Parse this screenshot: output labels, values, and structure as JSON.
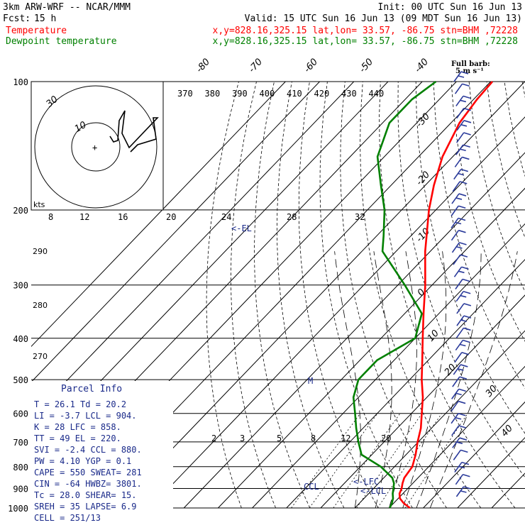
{
  "header": {
    "model": "3km ARW-WRF -- NCAR/MMM",
    "init": "Init: 00 UTC Sun 16 Jun 13",
    "fcst_label": "Fcst:",
    "fcst_value": "15 h",
    "valid": "Valid: 15 UTC Sun 16 Jun 13 (09 MDT Sun 16 Jun 13)",
    "temp_label": "Temperature",
    "dew_label": "Dewpoint temperature",
    "temp_loc": "x,y=828.16,325.15   lat,lon= 33.57, -86.75   stn=BHM ,72228",
    "dew_loc": "x,y=828.16,325.15   lat,lon= 33.57, -86.75   stn=BHM ,72228",
    "full_barb_1": "Full barb:",
    "full_barb_2": "5 m s⁻¹"
  },
  "colors": {
    "temperature": "#ff0000",
    "dewpoint": "#008000",
    "wind_barbs": "#2a3a9a",
    "parcel_info": "#1a2a8a"
  },
  "annotations": {
    "el": "<-EL",
    "lfc": "<-LFC",
    "lcl": "<-LCL",
    "ccl": "CCL",
    "freezing_marker": "M",
    "hodo_kts": "kts",
    "hodo_ring_outer": "30",
    "hodo_ring_inner": "10"
  },
  "parcel_info": {
    "title": "Parcel Info",
    "rows": [
      "T  =    26.1  Td =  20.2",
      "LI =    -3.7  LCL =  904.",
      "K  =      28  LFC =  858.",
      "TT =      49  EL  =  220.",
      "SVI =   -2.4  CCL =  880.",
      "PW =    4.10  YGP =   0.1",
      "CAPE =   550  SWEAT=  281",
      "CIN =    -64  HWBZ= 3801.",
      "Tc =    28.0  SHEAR=   15.",
      "SREH =    35  LAPSE=   6.9",
      "CELL = 251/13"
    ]
  },
  "chart_data": {
    "type": "line",
    "title": "",
    "xlabel": "",
    "ylabel": "",
    "y_axis": "pressure (hPa), logarithmic",
    "pressure_ticks": [
      100,
      200,
      300,
      400,
      500,
      600,
      700,
      800,
      900,
      1000
    ],
    "isotherm_labels": [
      -80,
      -70,
      -60,
      -50,
      -40,
      -30,
      -20,
      -10,
      0,
      10,
      20,
      30,
      40
    ],
    "theta_labels": [
      370,
      380,
      390,
      400,
      410,
      420,
      430,
      440
    ],
    "mixing_ratio_labels": [
      2,
      3,
      5,
      8,
      12,
      20
    ],
    "side_theta_labels": [
      290,
      280,
      270
    ],
    "hodograph_speed_labels": [
      8,
      12,
      16,
      20,
      24,
      28,
      32
    ],
    "series": [
      {
        "name": "Temperature",
        "color": "#ff0000",
        "points": [
          {
            "p": 1000,
            "t": 26.1
          },
          {
            "p": 975,
            "t": 23.0
          },
          {
            "p": 950,
            "t": 20.5
          },
          {
            "p": 925,
            "t": 19.0
          },
          {
            "p": 900,
            "t": 18.2
          },
          {
            "p": 875,
            "t": 17.0
          },
          {
            "p": 850,
            "t": 16.0
          },
          {
            "p": 800,
            "t": 15.2
          },
          {
            "p": 750,
            "t": 12.8
          },
          {
            "p": 700,
            "t": 9.8
          },
          {
            "p": 650,
            "t": 6.9
          },
          {
            "p": 600,
            "t": 3.0
          },
          {
            "p": 550,
            "t": -1.2
          },
          {
            "p": 500,
            "t": -6.5
          },
          {
            "p": 450,
            "t": -11.8
          },
          {
            "p": 400,
            "t": -17.8
          },
          {
            "p": 350,
            "t": -24.5
          },
          {
            "p": 300,
            "t": -32.0
          },
          {
            "p": 250,
            "t": -41.5
          },
          {
            "p": 200,
            "t": -52.0
          },
          {
            "p": 175,
            "t": -57.5
          },
          {
            "p": 150,
            "t": -63.0
          },
          {
            "p": 125,
            "t": -67.5
          },
          {
            "p": 110,
            "t": -69.0
          },
          {
            "p": 100,
            "t": -69.5
          }
        ]
      },
      {
        "name": "Dewpoint temperature",
        "color": "#008000",
        "points": [
          {
            "p": 1000,
            "t": 20.2
          },
          {
            "p": 975,
            "t": 19.5
          },
          {
            "p": 950,
            "t": 18.5
          },
          {
            "p": 925,
            "t": 17.0
          },
          {
            "p": 900,
            "t": 15.8
          },
          {
            "p": 875,
            "t": 14.5
          },
          {
            "p": 850,
            "t": 12.5
          },
          {
            "p": 800,
            "t": 6.0
          },
          {
            "p": 750,
            "t": -3.0
          },
          {
            "p": 700,
            "t": -7.5
          },
          {
            "p": 650,
            "t": -12.0
          },
          {
            "p": 600,
            "t": -16.5
          },
          {
            "p": 550,
            "t": -21.5
          },
          {
            "p": 500,
            "t": -25.0
          },
          {
            "p": 450,
            "t": -25.0
          },
          {
            "p": 400,
            "t": -20.0
          },
          {
            "p": 350,
            "t": -25.0
          },
          {
            "p": 300,
            "t": -38.0
          },
          {
            "p": 250,
            "t": -54.0
          },
          {
            "p": 230,
            "t": -58.0
          },
          {
            "p": 200,
            "t": -65.0
          },
          {
            "p": 175,
            "t": -73.0
          },
          {
            "p": 150,
            "t": -82.0
          },
          {
            "p": 125,
            "t": -88.0
          },
          {
            "p": 110,
            "t": -88.0
          },
          {
            "p": 100,
            "t": -86.0
          }
        ]
      }
    ],
    "levels": {
      "el": 220,
      "lfc": 858,
      "lcl": 904,
      "ccl": 880
    },
    "grid": true,
    "legend": "top-left"
  }
}
